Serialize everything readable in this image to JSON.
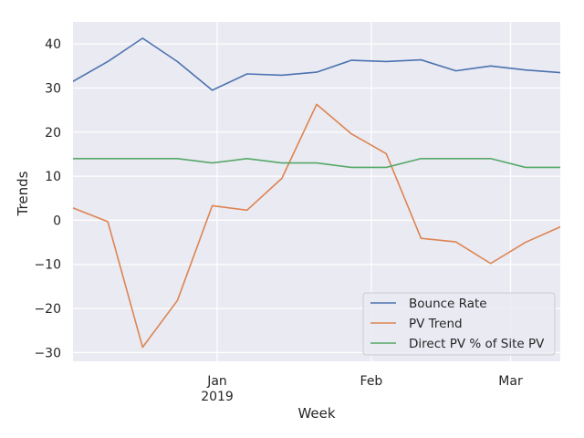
{
  "chart_data": {
    "type": "line",
    "xlabel": "Week",
    "ylabel": "Trends",
    "x": [
      "2018-12-03",
      "2018-12-10",
      "2018-12-17",
      "2018-12-24",
      "2018-12-31",
      "2019-01-07",
      "2019-01-14",
      "2019-01-21",
      "2019-01-28",
      "2019-02-04",
      "2019-02-11",
      "2019-02-18",
      "2019-02-25",
      "2019-03-04",
      "2019-03-11"
    ],
    "x_range": [
      "2018-12-03",
      "2019-03-11"
    ],
    "ylim": [
      -32,
      45
    ],
    "y_ticks": [
      -30,
      -20,
      -10,
      0,
      10,
      20,
      30,
      40
    ],
    "y_tick_labels": [
      "−30",
      "−20",
      "−10",
      "0",
      "10",
      "20",
      "30",
      "40"
    ],
    "x_ticks": [
      {
        "date": "2019-01-01",
        "label": "Jan",
        "sublabel": "2019"
      },
      {
        "date": "2019-02-01",
        "label": "Feb",
        "sublabel": ""
      },
      {
        "date": "2019-03-01",
        "label": "Mar",
        "sublabel": ""
      }
    ],
    "grid": true,
    "legend_position": "lower-right",
    "series": [
      {
        "name": "Bounce Rate",
        "color": "#4c72b0",
        "values": [
          31.5,
          36,
          41.3,
          36,
          29.5,
          33.2,
          32.9,
          33.6,
          36.3,
          36,
          36.4,
          33.9,
          35,
          34.1,
          33.5
        ]
      },
      {
        "name": "PV Trend",
        "color": "#dd8452",
        "values": [
          2.8,
          -0.3,
          -28.8,
          -18.2,
          3.3,
          2.3,
          9.5,
          26.3,
          19.6,
          15.1,
          -4.1,
          -4.9,
          -9.8,
          -5,
          -1.5
        ]
      },
      {
        "name": "Direct PV % of Site PV",
        "color": "#55a868",
        "values": [
          14,
          14,
          14,
          14,
          13,
          14,
          13,
          13,
          12,
          12,
          14,
          14,
          14,
          12,
          12
        ]
      }
    ]
  }
}
